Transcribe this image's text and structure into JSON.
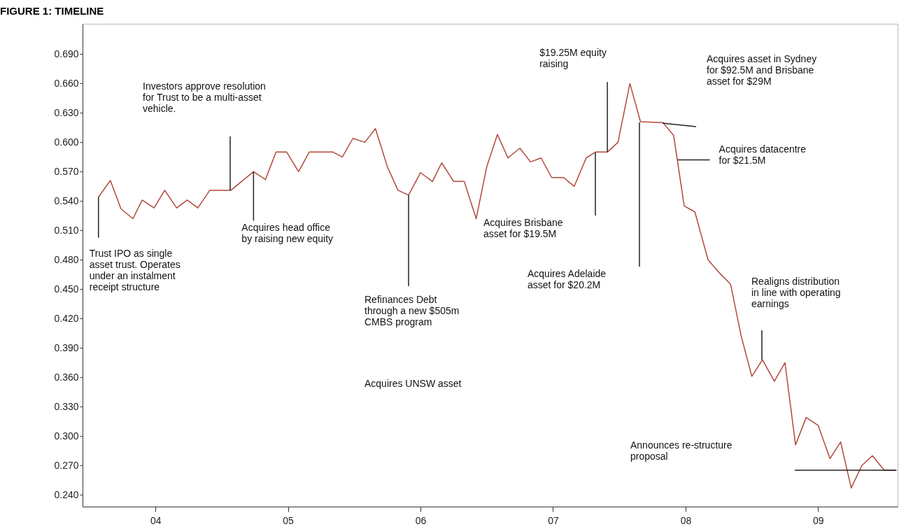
{
  "chart_data": {
    "type": "line",
    "title": "FIGURE 1: TIMELINE",
    "x": [
      2003.57,
      2003.66,
      2003.74,
      2003.83,
      2003.9,
      2003.99,
      2004.07,
      2004.16,
      2004.24,
      2004.32,
      2004.41,
      2004.57,
      2004.65,
      2004.74,
      2004.83,
      2004.91,
      2004.99,
      2005.08,
      2005.16,
      2005.34,
      2005.41,
      2005.49,
      2005.58,
      2005.66,
      2005.75,
      2005.83,
      2005.91,
      2006.0,
      2006.09,
      2006.16,
      2006.25,
      2006.33,
      2006.42,
      2006.5,
      2006.58,
      2006.66,
      2006.75,
      2006.83,
      2006.91,
      2006.99,
      2007.08,
      2007.16,
      2007.25,
      2007.32,
      2007.41,
      2007.49,
      2007.58,
      2007.66,
      2007.83,
      2007.91,
      2007.99,
      2008.07,
      2008.17,
      2008.26,
      2008.34,
      2008.42,
      2008.5,
      2008.58,
      2008.67,
      2008.75,
      2008.83,
      2008.91,
      2009.0,
      2009.09,
      2009.17,
      2009.25,
      2009.33,
      2009.41,
      2009.5,
      2009.59
    ],
    "series": [
      {
        "color": "#b04a3c",
        "values": [
          0.544,
          0.561,
          0.532,
          0.522,
          0.541,
          0.533,
          0.551,
          0.533,
          0.541,
          0.533,
          0.551,
          0.551,
          0.56,
          0.57,
          0.562,
          0.59,
          0.59,
          0.57,
          0.59,
          0.59,
          0.585,
          0.604,
          0.6,
          0.614,
          0.575,
          0.551,
          0.546,
          0.569,
          0.56,
          0.579,
          0.56,
          0.56,
          0.522,
          0.575,
          0.608,
          0.584,
          0.594,
          0.58,
          0.584,
          0.564,
          0.564,
          0.555,
          0.584,
          0.59,
          0.59,
          0.6,
          0.66,
          0.621,
          0.62,
          0.607,
          0.535,
          0.529,
          0.48,
          0.466,
          0.455,
          0.402,
          0.361,
          0.378,
          0.356,
          0.375,
          0.291,
          0.319,
          0.311,
          0.277,
          0.294,
          0.247,
          0.27,
          0.28,
          0.265,
          0.265
        ]
      }
    ],
    "xlim": [
      2003.45,
      2009.6
    ],
    "xticks": [
      {
        "value": 2004,
        "label": "04"
      },
      {
        "value": 2005,
        "label": "05"
      },
      {
        "value": 2006,
        "label": "06"
      },
      {
        "value": 2007,
        "label": "07"
      },
      {
        "value": 2008,
        "label": "08"
      },
      {
        "value": 2009,
        "label": "09"
      }
    ],
    "ylim": [
      0.228,
      0.721
    ],
    "yticks": [
      {
        "value": 0.24,
        "label": "0.240"
      },
      {
        "value": 0.27,
        "label": "0.270"
      },
      {
        "value": 0.3,
        "label": "0.300"
      },
      {
        "value": 0.33,
        "label": "0.330"
      },
      {
        "value": 0.36,
        "label": "0.360"
      },
      {
        "value": 0.39,
        "label": "0.390"
      },
      {
        "value": 0.42,
        "label": "0.420"
      },
      {
        "value": 0.45,
        "label": "0.450"
      },
      {
        "value": 0.48,
        "label": "0.480"
      },
      {
        "value": 0.51,
        "label": "0.510"
      },
      {
        "value": 0.54,
        "label": "0.540"
      },
      {
        "value": 0.57,
        "label": "0.570"
      },
      {
        "value": 0.6,
        "label": "0.600"
      },
      {
        "value": 0.63,
        "label": "0.630"
      },
      {
        "value": 0.66,
        "label": "0.660"
      },
      {
        "value": 0.69,
        "label": "0.690"
      }
    ],
    "annotations": [
      {
        "text": "Trust IPO as single asset trust. Operates under an instalment receipt structure",
        "x": 2003.57,
        "y": 0.544
      },
      "Investors approve resolution for Trust to be a multi-asset vehicle.",
      {
        "text": "Acquires head office by raising new equity",
        "x": 2004.74,
        "y": 0.57
      },
      {
        "text": "Refinances Debt through a new $505m CMBS program",
        "x": 2005.91,
        "y": 0.546
      },
      "Acquires UNSW asset",
      {
        "text": "$19.25M equity raising",
        "x": 2007.41,
        "y": 0.59
      },
      "Acquires Brisbane asset for $19.5M",
      "Acquires Adelaide asset for $20.2M",
      "Acquires asset in Sydney for $92.5M and Brisbane asset for $29M",
      {
        "text": "Acquires datacentre for $21.5M",
        "x": 2007.94,
        "y": 0.582
      },
      "Realigns distribution in line with operating earnings",
      "Announces re-structure proposal"
    ]
  }
}
